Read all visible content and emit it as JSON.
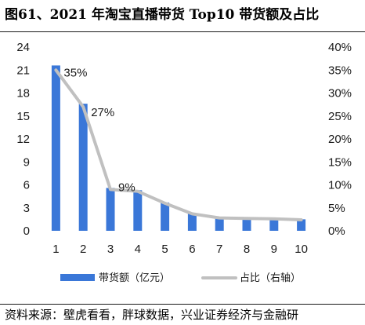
{
  "title": "图61、2021 年淘宝直播带货 Top10 带货额及占比",
  "source": "资料来源：壁虎看看，胖球数据，兴业证券经济与金融研",
  "colors": {
    "bar": "#3a77d8",
    "line": "#c0c0c0",
    "grid": "#d9d9d9"
  },
  "chart_data": {
    "type": "bar",
    "categories": [
      "1",
      "2",
      "3",
      "4",
      "5",
      "6",
      "7",
      "8",
      "9",
      "10"
    ],
    "series": [
      {
        "name": "带货额（亿元）",
        "type": "bar",
        "axis": "left",
        "values": [
          21.6,
          16.6,
          5.6,
          5.3,
          3.7,
          2.3,
          1.7,
          1.7,
          1.6,
          1.5
        ]
      },
      {
        "name": "占比（右轴）",
        "type": "line",
        "axis": "right",
        "values": [
          35,
          27,
          9,
          8.6,
          6,
          3.7,
          2.8,
          2.7,
          2.6,
          2.4
        ],
        "data_labels": [
          "35%",
          "27%",
          "9%",
          "",
          "",
          "",
          "",
          "",
          "",
          ""
        ]
      }
    ],
    "ylim_left": [
      0,
      24
    ],
    "yticks_left": [
      "0",
      "3",
      "6",
      "9",
      "12",
      "15",
      "18",
      "21",
      "24"
    ],
    "ylim_right": [
      0,
      40
    ],
    "yticks_right": [
      "0%",
      "5%",
      "10%",
      "15%",
      "20%",
      "25%",
      "30%",
      "35%",
      "40%"
    ],
    "grid": false,
    "legend_position": "bottom"
  }
}
